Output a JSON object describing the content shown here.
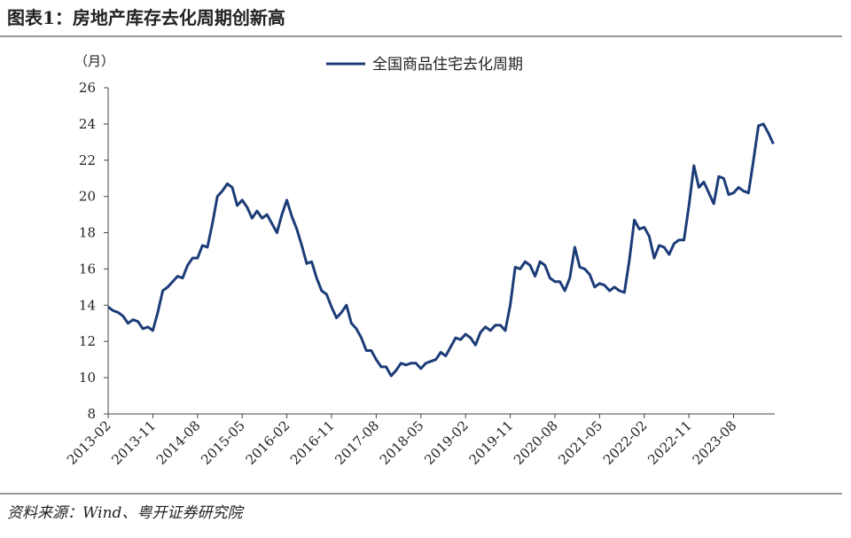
{
  "title": "图表1：房地产库存去化周期创新高",
  "source": "资料来源：Wind、粤开证券研究院",
  "chart_data": {
    "type": "line",
    "y_unit_label": "（月）",
    "categories": [
      "2013-02",
      null,
      null,
      null,
      null,
      null,
      null,
      null,
      null,
      "2013-11",
      null,
      null,
      null,
      null,
      null,
      null,
      null,
      null,
      "2014-08",
      null,
      null,
      null,
      null,
      null,
      null,
      null,
      null,
      "2015-05",
      null,
      null,
      null,
      null,
      null,
      null,
      null,
      null,
      "2016-02",
      null,
      null,
      null,
      null,
      null,
      null,
      null,
      null,
      "2016-11",
      null,
      null,
      null,
      null,
      null,
      null,
      null,
      null,
      "2017-08",
      null,
      null,
      null,
      null,
      null,
      null,
      null,
      null,
      "2018-05",
      null,
      null,
      null,
      null,
      null,
      null,
      null,
      null,
      "2019-02",
      null,
      null,
      null,
      null,
      null,
      null,
      null,
      null,
      "2019-11",
      null,
      null,
      null,
      null,
      null,
      null,
      null,
      null,
      "2020-08",
      null,
      null,
      null,
      null,
      null,
      null,
      null,
      null,
      "2021-05",
      null,
      null,
      null,
      null,
      null,
      null,
      null,
      null,
      "2022-02",
      null,
      null,
      null,
      null,
      null,
      null,
      null,
      null,
      "2022-11",
      null,
      null,
      null,
      null,
      null,
      null,
      null,
      null,
      "2023-08",
      null,
      null,
      null,
      null,
      null,
      null,
      null,
      null
    ],
    "series": [
      {
        "name": "全国商品住宅去化周期",
        "color": "#1c3c78",
        "values": [
          13.9,
          13.7,
          13.6,
          13.4,
          13.0,
          13.2,
          13.1,
          12.7,
          12.8,
          12.6,
          13.6,
          14.8,
          15.0,
          15.3,
          15.6,
          15.5,
          16.2,
          16.6,
          16.6,
          17.3,
          17.2,
          18.5,
          20.0,
          20.3,
          20.7,
          20.5,
          19.5,
          19.8,
          19.4,
          18.8,
          19.2,
          18.8,
          19.0,
          18.5,
          18.0,
          19.0,
          19.8,
          18.9,
          18.2,
          17.3,
          16.3,
          16.4,
          15.5,
          14.8,
          14.6,
          13.9,
          13.3,
          13.6,
          14.0,
          13.0,
          12.7,
          12.2,
          11.5,
          11.5,
          11.0,
          10.6,
          10.6,
          10.1,
          10.4,
          10.8,
          10.7,
          10.8,
          10.8,
          10.5,
          10.8,
          10.9,
          11.0,
          11.4,
          11.2,
          11.7,
          12.2,
          12.1,
          12.4,
          12.2,
          11.8,
          12.5,
          12.8,
          12.6,
          12.9,
          12.9,
          12.6,
          14.0,
          16.1,
          16.0,
          16.4,
          16.2,
          15.6,
          16.4,
          16.2,
          15.5,
          15.3,
          15.3,
          14.8,
          15.5,
          17.2,
          16.1,
          16.0,
          15.7,
          15.0,
          15.2,
          15.1,
          14.8,
          15.0,
          14.8,
          14.7,
          16.5,
          18.7,
          18.2,
          18.3,
          17.8,
          16.6,
          17.3,
          17.2,
          16.8,
          17.4,
          17.6,
          17.6,
          19.5,
          21.7,
          20.5,
          20.8,
          20.2,
          19.6,
          21.1,
          21.0,
          20.1,
          20.2,
          20.5,
          20.3,
          20.2,
          22.0,
          23.9,
          24.0,
          23.5,
          22.9
        ]
      }
    ],
    "ylim": [
      8,
      26
    ],
    "yticks": [
      8,
      10,
      12,
      14,
      16,
      18,
      20,
      22,
      24,
      26
    ],
    "grid": false,
    "legend": "top"
  }
}
